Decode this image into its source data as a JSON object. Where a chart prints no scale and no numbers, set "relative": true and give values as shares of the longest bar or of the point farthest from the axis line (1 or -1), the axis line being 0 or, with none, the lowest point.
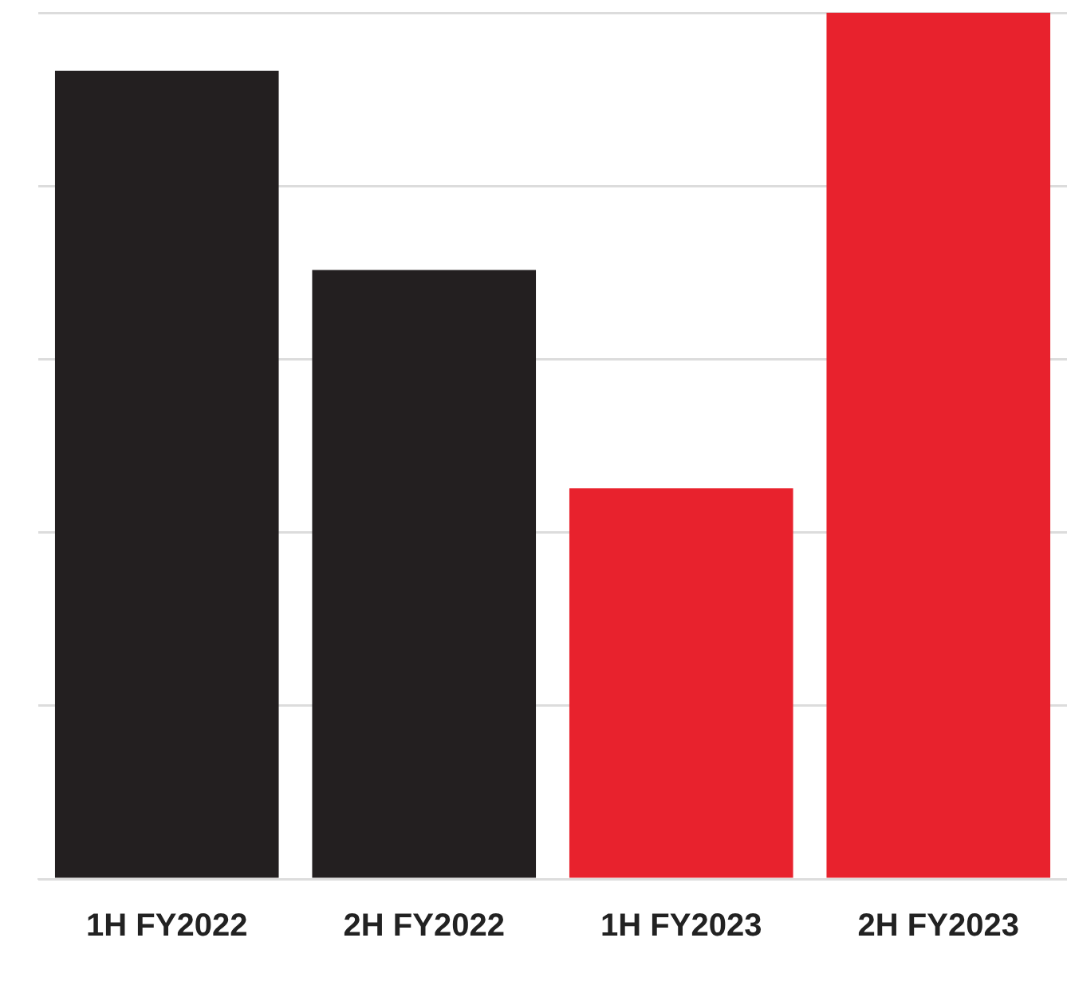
{
  "chart_data": {
    "type": "bar",
    "categories": [
      "1H FY2022",
      "2H FY2022",
      "1H FY2023",
      "2H FY2023"
    ],
    "values": [
      0.933,
      0.703,
      0.451,
      1
    ],
    "colors": [
      "#231f20",
      "#231f20",
      "#e8222d",
      "#e8222d"
    ],
    "relative": true,
    "grid": "y",
    "legend": false
  }
}
